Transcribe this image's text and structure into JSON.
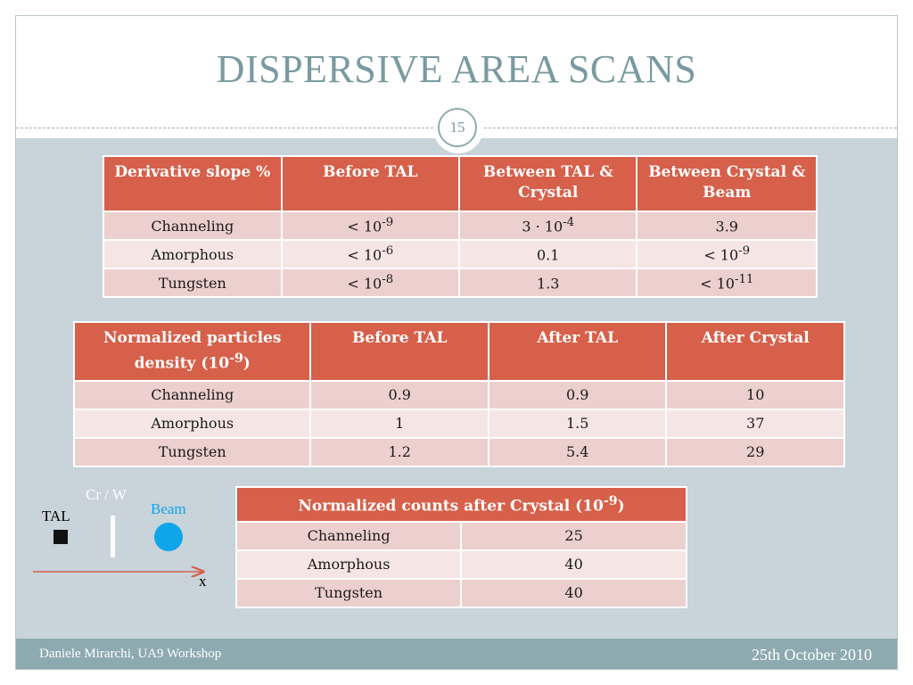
{
  "slide": {
    "title": "DISPERSIVE AREA SCANS",
    "page_number": "15"
  },
  "table1": {
    "headers": [
      "Derivative slope %",
      "Before TAL",
      "Between TAL & Crystal",
      "Between Crystal & Beam"
    ],
    "rows": [
      {
        "label": "Channeling",
        "before_tal": {
          "base": "< 10",
          "exp": "-9"
        },
        "between_tal_crystal": {
          "base": "3 · 10",
          "exp": "-4"
        },
        "between_crystal_beam": {
          "base": "3.9",
          "exp": ""
        }
      },
      {
        "label": "Amorphous",
        "before_tal": {
          "base": "< 10",
          "exp": "-6"
        },
        "between_tal_crystal": {
          "base": "0.1",
          "exp": ""
        },
        "between_crystal_beam": {
          "base": "< 10",
          "exp": "-9"
        }
      },
      {
        "label": "Tungsten",
        "before_tal": {
          "base": "< 10",
          "exp": "-8"
        },
        "between_tal_crystal": {
          "base": "1.3",
          "exp": ""
        },
        "between_crystal_beam": {
          "base": "< 10",
          "exp": "-11"
        }
      }
    ]
  },
  "table2": {
    "header_first": {
      "text": "Normalized particles density (10",
      "exp": "-9",
      "suffix": ")"
    },
    "headers": [
      "Before TAL",
      "After TAL",
      "After Crystal"
    ],
    "rows": [
      {
        "label": "Channeling",
        "values": [
          "0.9",
          "0.9",
          "10"
        ]
      },
      {
        "label": "Amorphous",
        "values": [
          "1",
          "1.5",
          "37"
        ]
      },
      {
        "label": "Tungsten",
        "values": [
          "1.2",
          "5.4",
          "29"
        ]
      }
    ]
  },
  "table3": {
    "header": {
      "text": "Normalized counts after Crystal (10",
      "exp": "-9",
      "suffix": ")"
    },
    "rows": [
      {
        "label": "Channeling",
        "value": "25"
      },
      {
        "label": "Amorphous",
        "value": "40"
      },
      {
        "label": "Tungsten",
        "value": "40"
      }
    ]
  },
  "diagram": {
    "tal_label": "TAL",
    "crystal_label": "Cr / W",
    "beam_label": "Beam",
    "axis_label": "x",
    "colors": {
      "tal": "#000000",
      "crystal": "#ffffff",
      "beam": "#0ea5e9",
      "crystal_label": "#ffffff",
      "beam_label": "#0ea5e9",
      "arrow": "#d6604a"
    }
  },
  "footer": {
    "author": "Daniele Mirarchi, UA9 Workshop",
    "date": "25th October 2010"
  },
  "colors": {
    "title": "#7a9aa0",
    "header_bg": "#d6604a",
    "row_odd": "#ecd0cd",
    "row_even": "#f5e6e4",
    "content_bg": "#c8d3da",
    "footer_bg": "#8daab0"
  }
}
